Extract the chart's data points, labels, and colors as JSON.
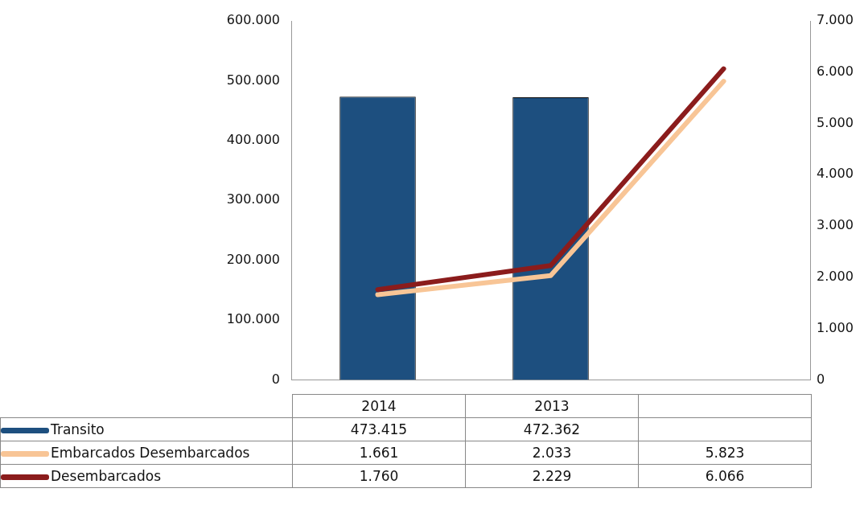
{
  "chart_data": {
    "type": "bar",
    "categories": [
      "2014",
      "2013",
      null
    ],
    "series": [
      {
        "name": "Transito",
        "color": "#1d4f7f",
        "values": [
          473415,
          472362,
          null
        ]
      },
      {
        "name": "Embarcados Desembarcados",
        "type": "line",
        "axis": "y2",
        "color": "#f8c596",
        "values": [
          1661,
          2033,
          5823
        ]
      },
      {
        "name": "Desembarcados",
        "type": "line",
        "axis": "y2",
        "color": "#8b1c1c",
        "values": [
          1760,
          2229,
          6066
        ]
      }
    ],
    "ylim": [
      0,
      600000
    ],
    "yticks": [
      {
        "value": 0,
        "label": "0"
      },
      {
        "value": 100000,
        "label": "100.000"
      },
      {
        "value": 200000,
        "label": "200.000"
      },
      {
        "value": 300000,
        "label": "300.000"
      },
      {
        "value": 400000,
        "label": "400.000"
      },
      {
        "value": 500000,
        "label": "500.000"
      },
      {
        "value": 600000,
        "label": "600.000"
      }
    ],
    "y2lim": [
      0,
      7000
    ],
    "y2ticks": [
      {
        "value": 0,
        "label": "0"
      },
      {
        "value": 1000,
        "label": "1.000"
      },
      {
        "value": 2000,
        "label": "2.000"
      },
      {
        "value": 3000,
        "label": "3.000"
      },
      {
        "value": 4000,
        "label": "4.000"
      },
      {
        "value": 5000,
        "label": "5.000"
      },
      {
        "value": 6000,
        "label": "6.000"
      },
      {
        "value": 7000,
        "label": "7.000"
      }
    ],
    "value_labels": [
      [
        "473.415",
        "472.362",
        null
      ],
      [
        "1.661",
        "2.033",
        "5.823"
      ],
      [
        "1.760",
        "2.229",
        "6.066"
      ]
    ],
    "grid": false,
    "legend": "bottom",
    "marker": "none",
    "line_style": "solid"
  }
}
